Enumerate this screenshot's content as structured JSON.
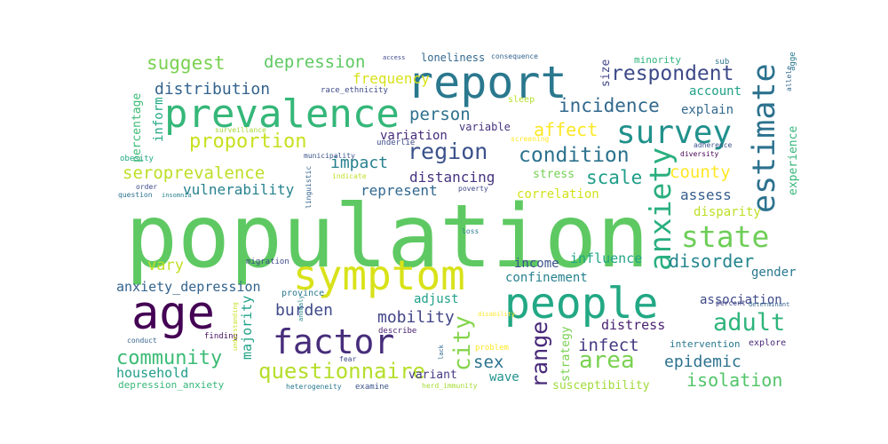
{
  "words": [
    {
      "text": "population",
      "color": "#5ec962"
    },
    {
      "text": "symptom",
      "color": "#d8e219"
    },
    {
      "text": "prevalence",
      "color": "#35b779"
    },
    {
      "text": "report",
      "color": "#2a788e"
    },
    {
      "text": "people",
      "color": "#22a884"
    },
    {
      "text": "age",
      "color": "#440154"
    },
    {
      "text": "factor",
      "color": "#472d7b"
    },
    {
      "text": "survey",
      "color": "#21918c"
    },
    {
      "text": "estimate",
      "color": "#2c728e"
    },
    {
      "text": "anxiety",
      "color": "#29af7f"
    },
    {
      "text": "state",
      "color": "#6ece58"
    },
    {
      "text": "adult",
      "color": "#2fb47c"
    },
    {
      "text": "area",
      "color": "#7ad151"
    },
    {
      "text": "questionnaire",
      "color": "#b5de2b"
    },
    {
      "text": "region",
      "color": "#3b528b"
    },
    {
      "text": "condition",
      "color": "#2c728e"
    },
    {
      "text": "respondent",
      "color": "#3e4a89"
    },
    {
      "text": "incidence",
      "color": "#31688e"
    },
    {
      "text": "proportion",
      "color": "#c8e020"
    },
    {
      "text": "community",
      "color": "#3bbb75"
    },
    {
      "text": "seroprevalence",
      "color": "#bddf26"
    },
    {
      "text": "suggest",
      "color": "#7ad151"
    },
    {
      "text": "depression",
      "color": "#5ec962"
    },
    {
      "text": "distribution",
      "color": "#33638d"
    },
    {
      "text": "person",
      "color": "#2d708e"
    },
    {
      "text": "affect",
      "color": "#fde725"
    },
    {
      "text": "impact",
      "color": "#277f8e"
    },
    {
      "text": "scale",
      "color": "#1f9e89"
    },
    {
      "text": "county",
      "color": "#fde725"
    },
    {
      "text": "city",
      "color": "#84d44b"
    },
    {
      "text": "range",
      "color": "#482878"
    },
    {
      "text": "disorder",
      "color": "#24868e"
    },
    {
      "text": "burden",
      "color": "#3e4a89"
    },
    {
      "text": "mobility",
      "color": "#414487"
    },
    {
      "text": "infect",
      "color": "#443983"
    },
    {
      "text": "epidemic",
      "color": "#2c728e"
    },
    {
      "text": "isolation",
      "color": "#52c569"
    },
    {
      "text": "sex",
      "color": "#2c728e"
    },
    {
      "text": "vary",
      "color": "#c0df25"
    },
    {
      "text": "distancing",
      "color": "#46337f"
    },
    {
      "text": "frequency",
      "color": "#d8e219"
    },
    {
      "text": "vulnerability",
      "color": "#26828e"
    },
    {
      "text": "represent",
      "color": "#31688e"
    },
    {
      "text": "assess",
      "color": "#365c8d"
    },
    {
      "text": "household",
      "color": "#1f9e89"
    },
    {
      "text": "influence",
      "color": "#20a486"
    },
    {
      "text": "majority",
      "color": "#1fa188"
    },
    {
      "text": "anxiety_depression",
      "color": "#33638d"
    },
    {
      "text": "income",
      "color": "#3b528b"
    },
    {
      "text": "confinement",
      "color": "#26828e"
    },
    {
      "text": "association",
      "color": "#3e4a89"
    },
    {
      "text": "gender",
      "color": "#2a788e"
    },
    {
      "text": "adjust",
      "color": "#1fa188"
    },
    {
      "text": "distress",
      "color": "#481f70"
    },
    {
      "text": "stress",
      "color": "#75d054"
    },
    {
      "text": "variation",
      "color": "#472d7b"
    },
    {
      "text": "account",
      "color": "#1fa188"
    },
    {
      "text": "explain",
      "color": "#31688e"
    },
    {
      "text": "correlation",
      "color": "#d2e21b"
    },
    {
      "text": "disparity",
      "color": "#bddf26"
    },
    {
      "text": "experience",
      "color": "#35b779"
    },
    {
      "text": "inform",
      "color": "#22a884"
    },
    {
      "text": "percentage",
      "color": "#3bbb75"
    },
    {
      "text": "size",
      "color": "#404688"
    },
    {
      "text": "wave",
      "color": "#21918c"
    },
    {
      "text": "strategy",
      "color": "#7ad151"
    },
    {
      "text": "susceptibility",
      "color": "#a0da39"
    },
    {
      "text": "variant",
      "color": "#443983"
    },
    {
      "text": "depression_anxiety",
      "color": "#35b779"
    },
    {
      "text": "variable",
      "color": "#46337f"
    },
    {
      "text": "intervention",
      "color": "#2a788e"
    },
    {
      "text": "explore",
      "color": "#482878"
    },
    {
      "text": "loneliness",
      "color": "#31688e"
    },
    {
      "text": "consequence",
      "color": "#33638d"
    },
    {
      "text": "access",
      "color": "#3e4a89"
    },
    {
      "text": "minority",
      "color": "#2fb47c"
    },
    {
      "text": "sub",
      "color": "#2c728e"
    },
    {
      "text": "sleep",
      "color": "#b5de2b"
    },
    {
      "text": "race_ethnicity",
      "color": "#3e4a89"
    },
    {
      "text": "underlie",
      "color": "#3e4a89"
    },
    {
      "text": "municipality",
      "color": "#3b528b"
    },
    {
      "text": "surveillance",
      "color": "#a5db36"
    },
    {
      "text": "obesity",
      "color": "#22a884"
    },
    {
      "text": "question",
      "color": "#2c728e"
    },
    {
      "text": "order",
      "color": "#3e4a89"
    },
    {
      "text": "insomnia",
      "color": "#26828e"
    },
    {
      "text": "indicate",
      "color": "#c0df25"
    },
    {
      "text": "poverty",
      "color": "#404688"
    },
    {
      "text": "screening",
      "color": "#fde725"
    },
    {
      "text": "diversity",
      "color": "#440154"
    },
    {
      "text": "adherence",
      "color": "#3b528b"
    },
    {
      "text": "percent",
      "color": "#414487"
    },
    {
      "text": "determinant",
      "color": "#33638d"
    },
    {
      "text": "loss",
      "color": "#2a788e"
    },
    {
      "text": "migration",
      "color": "#3e4a89"
    },
    {
      "text": "province",
      "color": "#2a788e"
    },
    {
      "text": "conduct",
      "color": "#33638d"
    },
    {
      "text": "finding",
      "color": "#471063"
    },
    {
      "text": "understanding",
      "color": "#c8e020"
    },
    {
      "text": "describe",
      "color": "#481f70"
    },
    {
      "text": "disability",
      "color": "#fde725"
    },
    {
      "text": "fear",
      "color": "#3e4a89"
    },
    {
      "text": "lack",
      "color": "#31688e"
    },
    {
      "text": "problem",
      "color": "#fde725"
    },
    {
      "text": "heterogeneity",
      "color": "#2a788e"
    },
    {
      "text": "examine",
      "color": "#3b528b"
    },
    {
      "text": "herd_immunity",
      "color": "#a5db36"
    },
    {
      "text": "anomaly",
      "color": "#26828e"
    },
    {
      "text": "agge",
      "color": "#2a788e"
    },
    {
      "text": "allele",
      "color": "#31688e"
    },
    {
      "text": "linguistic",
      "color": "#33638d"
    }
  ]
}
